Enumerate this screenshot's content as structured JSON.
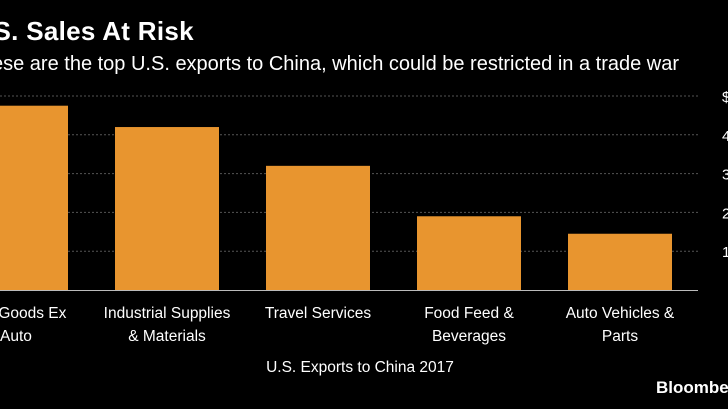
{
  "title": ".S. Sales At Risk",
  "subtitle": "ese are the top U.S. exports to China, which could be restricted in a trade war",
  "source": "Bloomberg",
  "colors": {
    "background": "#000000",
    "bar": "#E8952F",
    "grid": "#555555",
    "text": "#FFFFFF"
  },
  "chart_data": {
    "type": "bar",
    "title": ".S. Sales At Risk",
    "xlabel": "U.S. Exports to China 2017",
    "ylabel": "",
    "categories": [
      [
        "pital Goods Ex",
        "Auto"
      ],
      [
        "Industrial Supplies",
        "& Materials"
      ],
      [
        "Travel Services"
      ],
      [
        "Food Feed &",
        "Beverages"
      ],
      [
        "Auto Vehicles &",
        "Parts"
      ]
    ],
    "values": [
      47.5,
      42,
      32,
      19,
      14.5
    ],
    "ylim": [
      0,
      50
    ],
    "yticks": [
      10,
      20,
      30,
      40,
      50
    ],
    "ytick_labels": [
      "1",
      "2",
      "3",
      "4",
      "$"
    ],
    "grid": true
  }
}
